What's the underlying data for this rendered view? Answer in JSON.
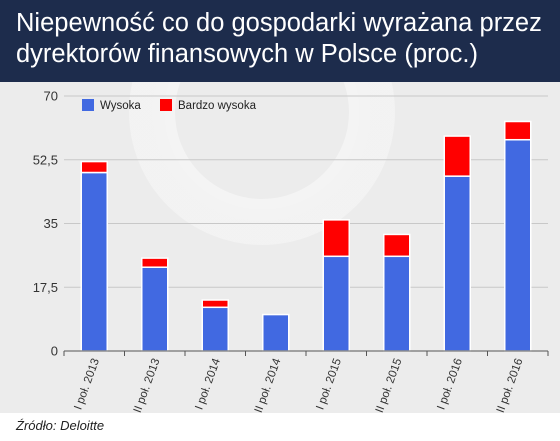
{
  "header": {
    "title": "Niepewność co do gospodarki wyrażana przez dyrektorów finansowych w Polsce (proc.)"
  },
  "footer": {
    "source": "Źródło: Deloitte"
  },
  "colors": {
    "header_bg": "#1d2c4c",
    "chart_bg": "#ececec",
    "series_high": "#4169e1",
    "series_very_high": "#ff0000"
  },
  "chart_data": {
    "type": "bar",
    "stacked": true,
    "categories": [
      "I poł. 2013",
      "II poł. 2013",
      "I poł. 2014",
      "II poł. 2014",
      "I poł. 2015",
      "II poł. 2015",
      "I poł. 2016",
      "II poł. 2016"
    ],
    "series": [
      {
        "name": "Wysoka",
        "color": "#4169e1",
        "values": [
          49,
          23,
          12,
          10,
          26,
          26,
          48,
          58
        ]
      },
      {
        "name": "Bardzo wysoka",
        "color": "#ff0000",
        "values": [
          3,
          2.5,
          2,
          0,
          10,
          6,
          11,
          5
        ]
      }
    ],
    "yticks": [
      "70",
      "52,5",
      "35",
      "17,5",
      "0"
    ],
    "ylim": [
      0,
      70
    ],
    "grid": true,
    "legend": "top-left",
    "title": "",
    "xlabel": "",
    "ylabel": ""
  }
}
